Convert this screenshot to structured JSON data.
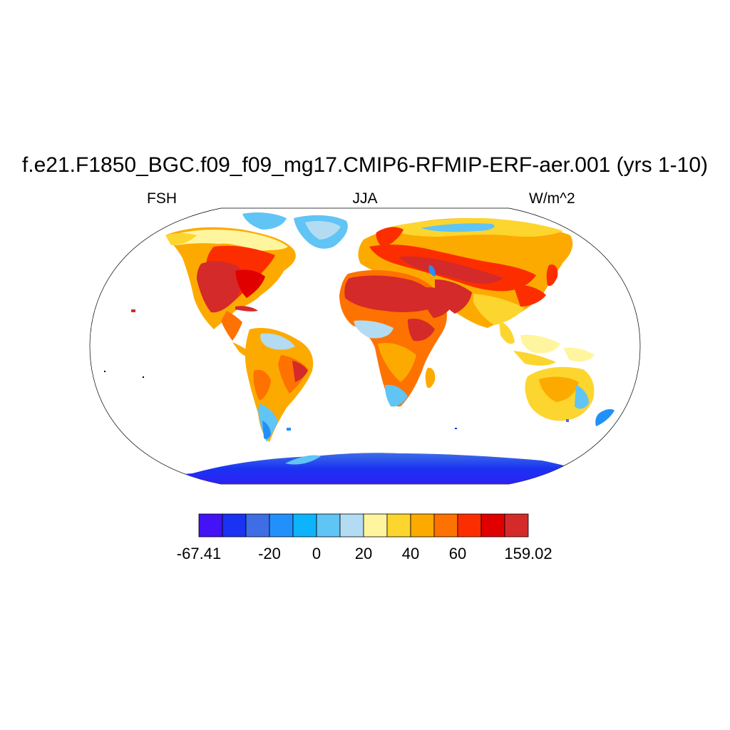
{
  "header": {
    "title": "f.e21.F1850_BGC.f09_f09_mg17.CMIP6-RFMIP-ERF-aer.001 (yrs 1-10)",
    "left_label": "FSH",
    "center_label": "JJA",
    "right_label": "W/m^2"
  },
  "map": {
    "projection": "Robinson",
    "variable": "FSH",
    "season": "JJA",
    "units": "W/m^2"
  },
  "colorbar": {
    "colors": [
      "#4312f5",
      "#1a32f2",
      "#3e6de6",
      "#2290fa",
      "#0db4fb",
      "#60c4f5",
      "#b3dcf2",
      "#fff59e",
      "#fdd52f",
      "#fdaa00",
      "#fd7200",
      "#fc2e00",
      "#e10000",
      "#d42a2a"
    ],
    "tick_labels": [
      {
        "label": "-67.41",
        "boundary": 0
      },
      {
        "label": "-20",
        "boundary": 3
      },
      {
        "label": "0",
        "boundary": 5
      },
      {
        "label": "20",
        "boundary": 7
      },
      {
        "label": "40",
        "boundary": 9
      },
      {
        "label": "60",
        "boundary": 11
      },
      {
        "label": "159.02",
        "boundary": 14
      }
    ]
  }
}
